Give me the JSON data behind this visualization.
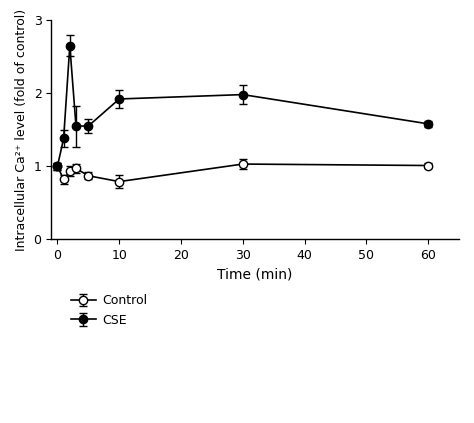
{
  "control_x": [
    0,
    1,
    2,
    3,
    5,
    10,
    30,
    60
  ],
  "control_y": [
    1.0,
    0.82,
    0.93,
    0.97,
    0.87,
    0.79,
    1.03,
    1.01
  ],
  "control_yerr": [
    0.05,
    0.06,
    0.07,
    0.06,
    0.05,
    0.09,
    0.07,
    0.04
  ],
  "cse_x": [
    0,
    1,
    2,
    3,
    5,
    10,
    30,
    60
  ],
  "cse_y": [
    1.0,
    1.38,
    2.65,
    1.55,
    1.55,
    1.92,
    1.98,
    1.58
  ],
  "cse_yerr": [
    0.05,
    0.12,
    0.14,
    0.28,
    0.09,
    0.12,
    0.13,
    0.04
  ],
  "xlabel": "Time (min)",
  "ylabel": "Intracellular Ca²⁺ level (fold of control)",
  "ylim": [
    0,
    3
  ],
  "xlim": [
    -1,
    65
  ],
  "yticks": [
    0,
    1,
    2,
    3
  ],
  "xticks": [
    0,
    10,
    20,
    30,
    40,
    50,
    60
  ],
  "legend_labels": [
    "Control",
    "CSE"
  ],
  "background_color": "#ffffff",
  "line_color": "#000000",
  "control_marker_facecolor": "white",
  "cse_marker_facecolor": "black",
  "marker_size": 6,
  "linewidth": 1.2,
  "capsize": 3,
  "elinewidth": 1.0
}
